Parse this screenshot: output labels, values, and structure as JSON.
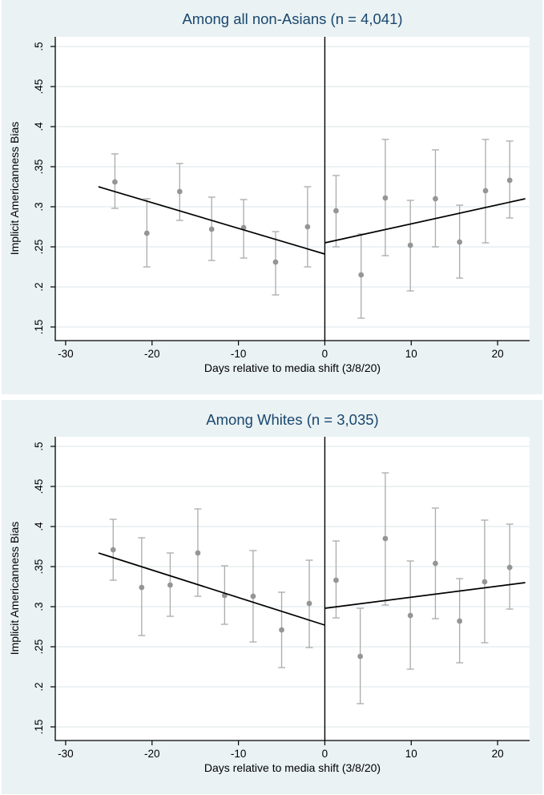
{
  "colors": {
    "panel_background": "#eaf2f3",
    "plot_background": "#ffffff",
    "gridline": "#e7eef1",
    "axis_line": "#000000",
    "title_text": "#1a476f",
    "tick_text": "#000000",
    "marker": "#959595",
    "error_bar": "#ababab",
    "fit_line": "#000000",
    "zero_line": "#000000"
  },
  "chart_data": [
    {
      "type": "scatter",
      "title": "Among all non-Asians (n = 4,041)",
      "xlabel": "Days relative to media shift (3/8/20)",
      "ylabel": "Implicit Americanness Bias",
      "xlim": [
        -31.2,
        23.7
      ],
      "ylim": [
        0.133,
        0.512
      ],
      "xticks": [
        -30,
        -20,
        -10,
        0,
        10,
        20
      ],
      "xtick_labels": [
        "-30",
        "-20",
        "-10",
        "0",
        "10",
        "20"
      ],
      "yticks": [
        0.15,
        0.2,
        0.25,
        0.3,
        0.35,
        0.4,
        0.45,
        0.5
      ],
      "ytick_labels": [
        ".15",
        ".2",
        ".25",
        ".3",
        ".35",
        ".4",
        ".45",
        ".5"
      ],
      "grid": true,
      "legend": "none",
      "zero_line_x": 0,
      "points": [
        {
          "x": -24.3,
          "y": 0.331,
          "lo": 0.298,
          "hi": 0.366
        },
        {
          "x": -20.6,
          "y": 0.267,
          "lo": 0.225,
          "hi": 0.31
        },
        {
          "x": -16.8,
          "y": 0.319,
          "lo": 0.283,
          "hi": 0.354
        },
        {
          "x": -13.1,
          "y": 0.272,
          "lo": 0.233,
          "hi": 0.312
        },
        {
          "x": -9.4,
          "y": 0.274,
          "lo": 0.236,
          "hi": 0.309
        },
        {
          "x": -5.7,
          "y": 0.231,
          "lo": 0.19,
          "hi": 0.269
        },
        {
          "x": -2.0,
          "y": 0.275,
          "lo": 0.225,
          "hi": 0.325
        },
        {
          "x": 1.3,
          "y": 0.295,
          "lo": 0.25,
          "hi": 0.339
        },
        {
          "x": 4.2,
          "y": 0.215,
          "lo": 0.161,
          "hi": 0.266
        },
        {
          "x": 7.0,
          "y": 0.311,
          "lo": 0.239,
          "hi": 0.384
        },
        {
          "x": 9.9,
          "y": 0.252,
          "lo": 0.195,
          "hi": 0.308
        },
        {
          "x": 12.8,
          "y": 0.31,
          "lo": 0.25,
          "hi": 0.371
        },
        {
          "x": 15.6,
          "y": 0.256,
          "lo": 0.211,
          "hi": 0.302
        },
        {
          "x": 18.6,
          "y": 0.32,
          "lo": 0.255,
          "hi": 0.384
        },
        {
          "x": 21.4,
          "y": 0.333,
          "lo": 0.286,
          "hi": 0.382
        }
      ],
      "fit_lines": [
        {
          "x1": -26.2,
          "y1": 0.325,
          "x2": 0,
          "y2": 0.241
        },
        {
          "x1": 0,
          "y1": 0.255,
          "x2": 23.2,
          "y2": 0.31
        }
      ]
    },
    {
      "type": "scatter",
      "title": "Among Whites (n = 3,035)",
      "xlabel": "Days relative to media shift (3/8/20)",
      "ylabel": "Implicit Americanness Bias",
      "xlim": [
        -31.2,
        23.7
      ],
      "ylim": [
        0.133,
        0.512
      ],
      "xticks": [
        -30,
        -20,
        -10,
        0,
        10,
        20
      ],
      "xtick_labels": [
        "-30",
        "-20",
        "-10",
        "0",
        "10",
        "20"
      ],
      "yticks": [
        0.15,
        0.2,
        0.25,
        0.3,
        0.35,
        0.4,
        0.45,
        0.5
      ],
      "ytick_labels": [
        ".15",
        ".2",
        ".25",
        ".3",
        ".35",
        ".4",
        ".45",
        ".5"
      ],
      "grid": true,
      "legend": "none",
      "zero_line_x": 0,
      "points": [
        {
          "x": -24.5,
          "y": 0.371,
          "lo": 0.333,
          "hi": 0.409
        },
        {
          "x": -21.2,
          "y": 0.324,
          "lo": 0.264,
          "hi": 0.386
        },
        {
          "x": -17.9,
          "y": 0.327,
          "lo": 0.288,
          "hi": 0.367
        },
        {
          "x": -14.7,
          "y": 0.367,
          "lo": 0.313,
          "hi": 0.422
        },
        {
          "x": -11.6,
          "y": 0.314,
          "lo": 0.278,
          "hi": 0.351
        },
        {
          "x": -8.3,
          "y": 0.313,
          "lo": 0.256,
          "hi": 0.37
        },
        {
          "x": -5.0,
          "y": 0.271,
          "lo": 0.224,
          "hi": 0.318
        },
        {
          "x": -1.8,
          "y": 0.304,
          "lo": 0.249,
          "hi": 0.358
        },
        {
          "x": 1.3,
          "y": 0.333,
          "lo": 0.286,
          "hi": 0.382
        },
        {
          "x": 4.1,
          "y": 0.238,
          "lo": 0.179,
          "hi": 0.298
        },
        {
          "x": 7.0,
          "y": 0.385,
          "lo": 0.302,
          "hi": 0.467
        },
        {
          "x": 9.9,
          "y": 0.289,
          "lo": 0.222,
          "hi": 0.357
        },
        {
          "x": 12.8,
          "y": 0.354,
          "lo": 0.285,
          "hi": 0.423
        },
        {
          "x": 15.6,
          "y": 0.282,
          "lo": 0.23,
          "hi": 0.335
        },
        {
          "x": 18.5,
          "y": 0.331,
          "lo": 0.255,
          "hi": 0.408
        },
        {
          "x": 21.4,
          "y": 0.349,
          "lo": 0.297,
          "hi": 0.403
        }
      ],
      "fit_lines": [
        {
          "x1": -26.2,
          "y1": 0.367,
          "x2": 0,
          "y2": 0.277
        },
        {
          "x1": 0,
          "y1": 0.298,
          "x2": 23.2,
          "y2": 0.33
        }
      ]
    }
  ]
}
